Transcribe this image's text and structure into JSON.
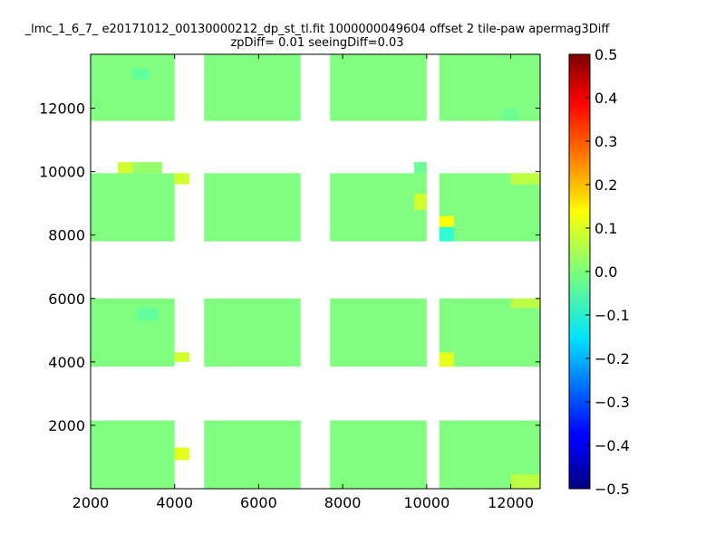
{
  "chart_data": {
    "type": "heatmap",
    "title_line1": "_lmc_1_6_7_ e20171012_00130000212_dp_st_tl.fit 1000000049604 offset 2 tile-paw apermag3Diff",
    "title_line2": "zpDiff= 0.01 seeingDiff=0.03",
    "xlabel": "",
    "ylabel": "",
    "xlim": [
      2000,
      12700
    ],
    "ylim": [
      0,
      13700
    ],
    "xticks": [
      2000,
      4000,
      6000,
      8000,
      10000,
      12000
    ],
    "yticks": [
      2000,
      4000,
      6000,
      8000,
      10000,
      12000
    ],
    "colorbar": {
      "colormap": "jet",
      "range": [
        -0.5,
        0.5
      ],
      "ticks": [
        "0.5",
        "0.4",
        "0.3",
        "0.2",
        "0.1",
        "0.0",
        "−0.1",
        "−0.2",
        "−0.3",
        "−0.4",
        "−0.5"
      ]
    },
    "tile_bands_y": [
      [
        0,
        2150
      ],
      [
        3850,
        6000
      ],
      [
        7800,
        9950
      ],
      [
        11600,
        13700
      ]
    ],
    "tile_columns_x": [
      [
        2000,
        4000
      ],
      [
        4700,
        7000
      ],
      [
        7700,
        10000
      ],
      [
        10300,
        12700
      ]
    ],
    "typical_value": 0.0,
    "value_range": [
      -0.08,
      0.12
    ],
    "cells": [
      {
        "x": [
          2650,
          3000
        ],
        "y": [
          9950,
          10300
        ],
        "value": 0.08
      },
      {
        "x": [
          3000,
          3700
        ],
        "y": [
          9950,
          10300
        ],
        "value": 0.02
      },
      {
        "x": [
          9700,
          10000
        ],
        "y": [
          9950,
          10300
        ],
        "value": -0.02
      },
      {
        "x": [
          10300,
          10650
        ],
        "y": [
          8250,
          8600
        ],
        "value": 0.12
      },
      {
        "x": [
          10300,
          10650
        ],
        "y": [
          7800,
          8250
        ],
        "value": -0.08
      },
      {
        "x": [
          4000,
          4350
        ],
        "y": [
          9600,
          9950
        ],
        "value": 0.08
      },
      {
        "x": [
          4000,
          4350
        ],
        "y": [
          4000,
          4300
        ],
        "value": 0.08
      },
      {
        "x": [
          4000,
          4350
        ],
        "y": [
          900,
          1300
        ],
        "value": 0.1
      },
      {
        "x": [
          10300,
          10650
        ],
        "y": [
          3850,
          4300
        ],
        "value": 0.1
      },
      {
        "x": [
          9700,
          10000
        ],
        "y": [
          8800,
          9300
        ],
        "value": 0.08
      },
      {
        "x": [
          12000,
          12700
        ],
        "y": [
          9600,
          9950
        ],
        "value": 0.06
      },
      {
        "x": [
          12000,
          12700
        ],
        "y": [
          0,
          450
        ],
        "value": 0.06
      },
      {
        "x": [
          12000,
          12700
        ],
        "y": [
          5700,
          6000
        ],
        "value": 0.06
      },
      {
        "x": [
          3000,
          3400
        ],
        "y": [
          12900,
          13250
        ],
        "value": -0.03
      },
      {
        "x": [
          3100,
          3600
        ],
        "y": [
          5300,
          5700
        ],
        "value": -0.03
      },
      {
        "x": [
          11800,
          12200
        ],
        "y": [
          11600,
          12000
        ],
        "value": -0.02
      }
    ]
  }
}
